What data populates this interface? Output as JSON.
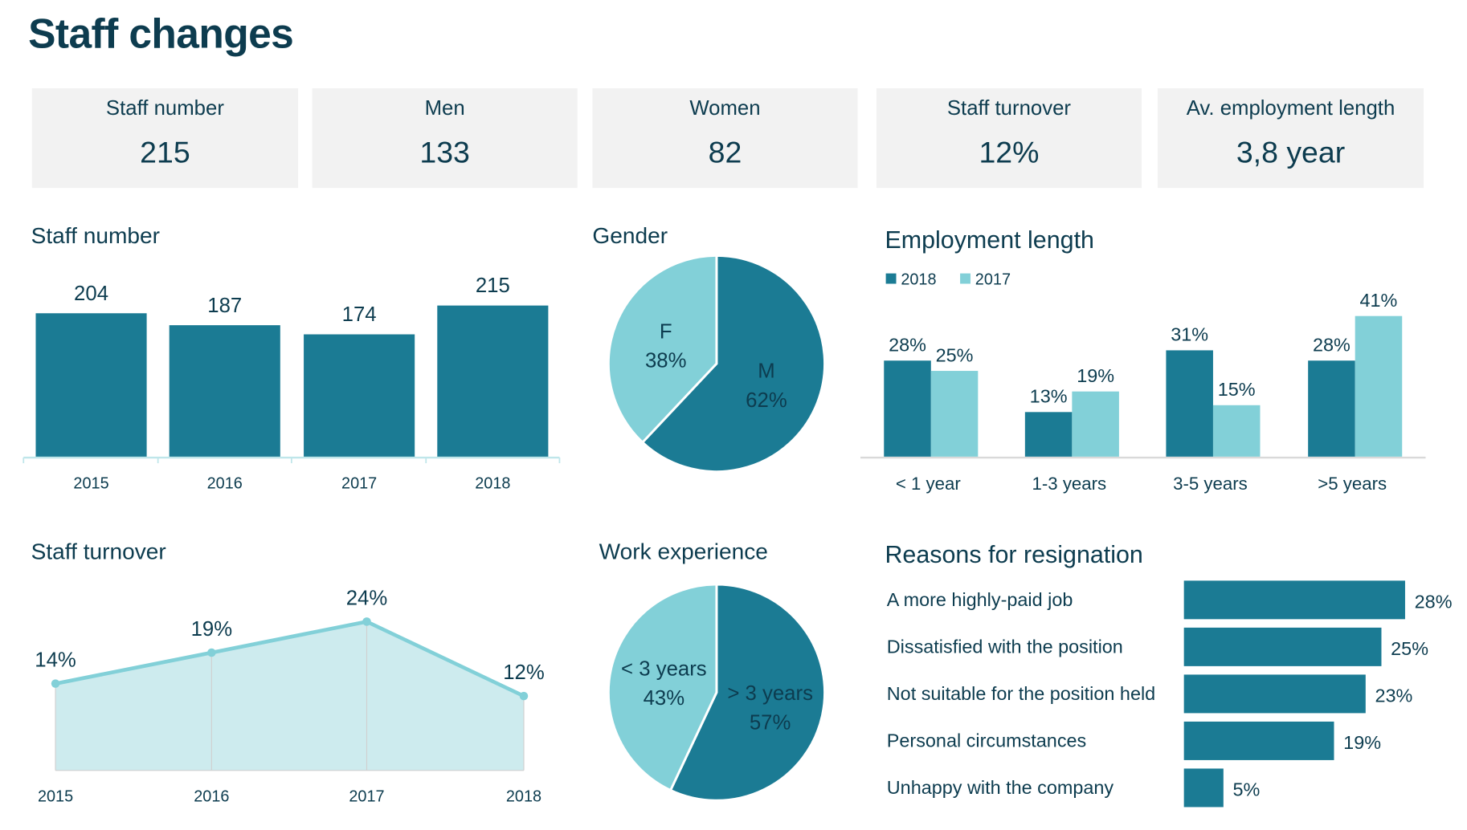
{
  "header": {
    "title": "Staff changes"
  },
  "colors": {
    "dark": "#1b7b94",
    "light": "#82d0d8",
    "light_label": "#3fb8c6",
    "area": "#cdebee",
    "text": "#0d3c4f",
    "kpi_bg": "#f2f2f2"
  },
  "kpis": [
    {
      "label": "Staff number",
      "value": "215"
    },
    {
      "label": "Men",
      "value": "133"
    },
    {
      "label": "Women",
      "value": "82"
    },
    {
      "label": "Staff turnover",
      "value": "12%"
    },
    {
      "label": "Av. employment length",
      "value": "3,8 year"
    }
  ],
  "chart_data": [
    {
      "id": "staff_number",
      "type": "bar",
      "title": "Staff number",
      "categories": [
        "2015",
        "2016",
        "2017",
        "2018"
      ],
      "values": [
        204,
        187,
        174,
        215
      ],
      "data_labels": [
        "204",
        "187",
        "174",
        "215"
      ]
    },
    {
      "id": "gender",
      "type": "pie",
      "title": "Gender",
      "slices": [
        {
          "label": "M",
          "value": 62,
          "text": "62%"
        },
        {
          "label": "F",
          "value": 38,
          "text": "38%"
        }
      ]
    },
    {
      "id": "employment_length",
      "type": "bar",
      "title": "Employment length",
      "legend": "top-left",
      "categories": [
        "< 1 year",
        "1-3 years",
        "3-5 years",
        ">5 years"
      ],
      "series": [
        {
          "name": "2018",
          "values": [
            28,
            13,
            31,
            28
          ],
          "data_labels": [
            "28%",
            "13%",
            "31%",
            "28%"
          ]
        },
        {
          "name": "2017",
          "values": [
            25,
            19,
            15,
            41
          ],
          "data_labels": [
            "25%",
            "19%",
            "15%",
            "41%"
          ]
        }
      ]
    },
    {
      "id": "staff_turnover",
      "type": "area",
      "title": "Staff turnover",
      "categories": [
        "2015",
        "2016",
        "2017",
        "2018"
      ],
      "values": [
        14,
        19,
        24,
        12
      ],
      "data_labels": [
        "14%",
        "19%",
        "24%",
        "12%"
      ]
    },
    {
      "id": "work_experience",
      "type": "pie",
      "title": "Work experience",
      "slices": [
        {
          "label": "> 3 years",
          "value": 57,
          "text": "57%"
        },
        {
          "label": "< 3 years",
          "value": 43,
          "text": "43%"
        }
      ]
    },
    {
      "id": "reasons",
      "type": "bar",
      "orientation": "horizontal",
      "title": "Reasons for resignation",
      "categories": [
        "A more highly-paid job",
        "Dissatisfied with the position",
        "Not suitable for the position held",
        "Personal circumstances",
        "Unhappy with the company"
      ],
      "values": [
        28,
        25,
        23,
        19,
        5
      ],
      "data_labels": [
        "28%",
        "25%",
        "23%",
        "19%",
        "5%"
      ]
    }
  ]
}
